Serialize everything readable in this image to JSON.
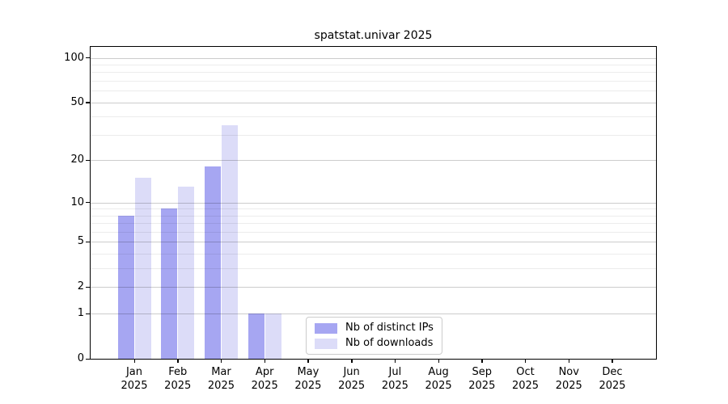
{
  "chart_data": {
    "type": "bar",
    "title": "spatstat.univar 2025",
    "categories": [
      "Jan 2025",
      "Feb 2025",
      "Mar 2025",
      "Apr 2025",
      "May 2025",
      "Jun 2025",
      "Jul 2025",
      "Aug 2025",
      "Sep 2025",
      "Oct 2025",
      "Nov 2025",
      "Dec 2025"
    ],
    "x_tick_months": [
      "Jan",
      "Feb",
      "Mar",
      "Apr",
      "May",
      "Jun",
      "Jul",
      "Aug",
      "Sep",
      "Oct",
      "Nov",
      "Dec"
    ],
    "x_tick_year": "2025",
    "series": [
      {
        "name": "Nb of distinct IPs",
        "key": "distinct-ips",
        "color": "#a6a6f2",
        "values": [
          8,
          9,
          18,
          1,
          0,
          0,
          0,
          0,
          0,
          0,
          0,
          0
        ]
      },
      {
        "name": "Nb of downloads",
        "key": "downloads",
        "color": "#dcdcf8",
        "values": [
          15,
          13,
          35,
          1,
          0,
          0,
          0,
          0,
          0,
          0,
          0,
          0
        ]
      }
    ],
    "yscale": "log10(1+x)",
    "ylim": [
      0,
      118
    ],
    "yticks": [
      0,
      1,
      2,
      5,
      10,
      20,
      50,
      100
    ],
    "minor_yticks": [
      3,
      4,
      6,
      7,
      8,
      9,
      30,
      40,
      60,
      70,
      80,
      90
    ],
    "grid": true,
    "legend_position": "inside-bottom-center"
  },
  "colors": {
    "background": "#ffffff",
    "axis": "#000000",
    "major_grid": "#cccccc",
    "minor_grid": "#ececec",
    "legend_border": "#cccccc",
    "bar_distinct_ips": "#a6a6f2",
    "bar_downloads": "#dcdcf8"
  }
}
